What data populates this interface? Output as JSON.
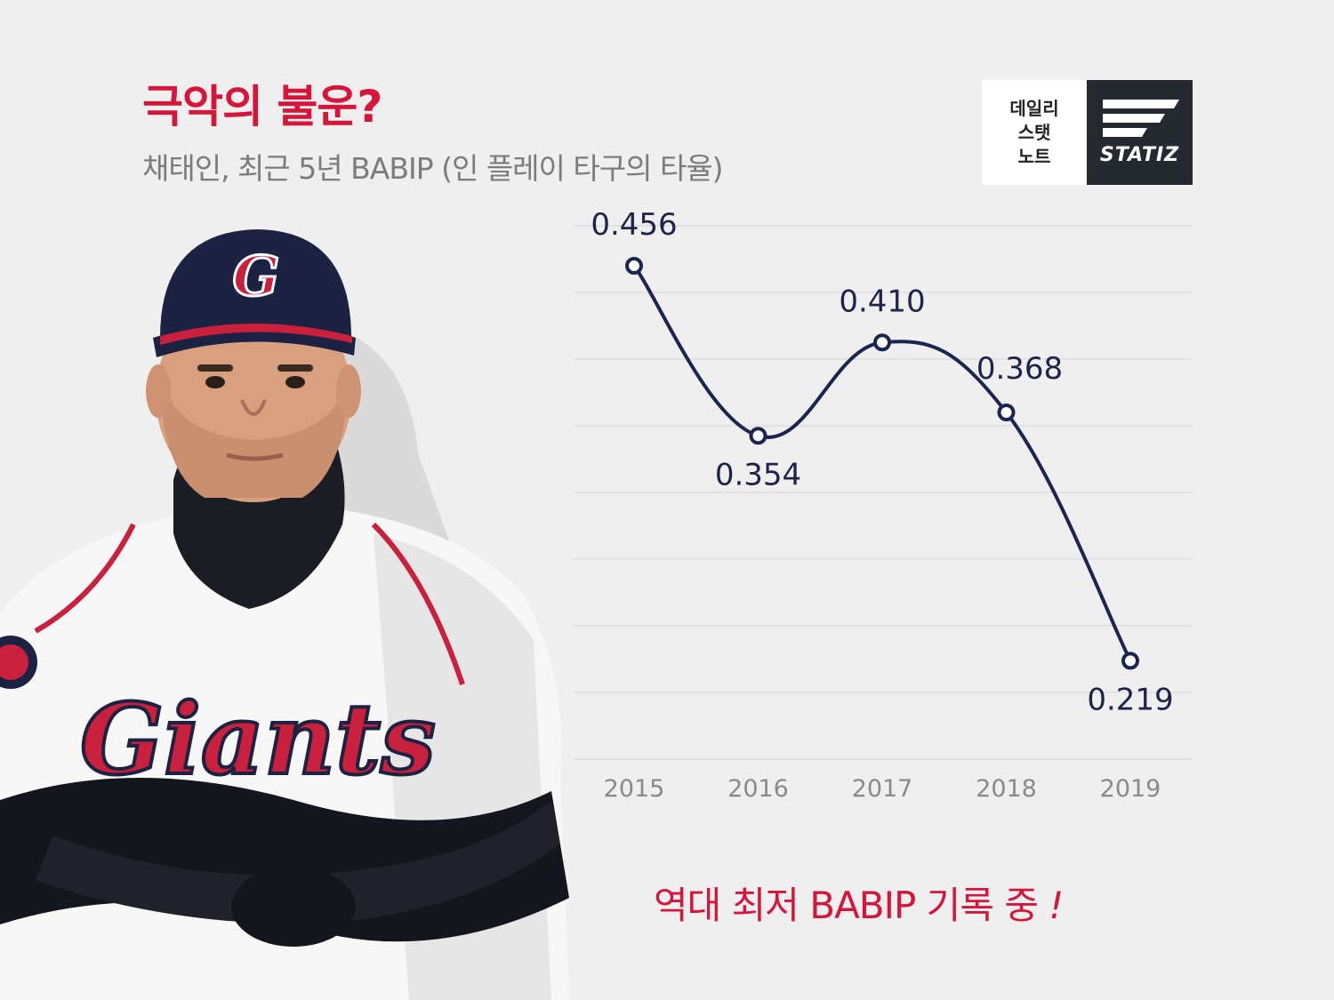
{
  "header": {
    "title": "극악의 불운?",
    "subtitle": "채태인, 최근 5년 BABIP (인 플레이 타구의 타율)"
  },
  "logos": {
    "daily_lines": [
      "데일리",
      "스탯",
      "노트"
    ],
    "statiz": "STATIZ"
  },
  "player": {
    "cap_letter": "G",
    "jersey_text": "Giants"
  },
  "colors": {
    "accent": "#d6153b",
    "line": "#1b2650",
    "grid": "#d9d9d9",
    "axis_text": "#8a8a8a",
    "navy": "#1d2447"
  },
  "chart_data": {
    "type": "line",
    "categories": [
      "2015",
      "2016",
      "2017",
      "2018",
      "2019"
    ],
    "values": [
      0.456,
      0.354,
      0.41,
      0.368,
      0.219
    ],
    "data_labels": [
      "0.456",
      "0.354",
      "0.410",
      "0.368",
      "0.219"
    ],
    "ylim": [
      0.16,
      0.48
    ],
    "grid": "horizontal",
    "smooth": true
  },
  "footer": {
    "note": "역대 최저 BABIP 기록 중",
    "exclaim": "!"
  }
}
